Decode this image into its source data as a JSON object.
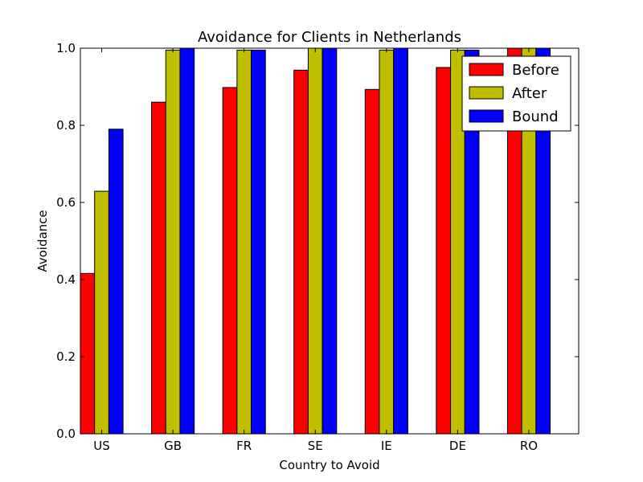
{
  "chart_data": {
    "type": "bar",
    "title": "Avoidance for Clients in Netherlands",
    "xlabel": "Country to Avoid",
    "ylabel": "Avoidance",
    "categories": [
      "US",
      "GB",
      "FR",
      "SE",
      "IE",
      "DE",
      "RO"
    ],
    "ylim": [
      0.0,
      1.0
    ],
    "yticks": [
      "0.0",
      "0.2",
      "0.4",
      "0.6",
      "0.8",
      "1.0"
    ],
    "grid": false,
    "legend_position": "top-right",
    "series": [
      {
        "name": "Before",
        "color": "#ff0000",
        "values": [
          0.416,
          0.86,
          0.898,
          0.943,
          0.893,
          0.95,
          1.0
        ]
      },
      {
        "name": "After",
        "color": "#bfbf00",
        "values": [
          0.629,
          0.995,
          0.995,
          1.0,
          0.995,
          0.995,
          1.0
        ]
      },
      {
        "name": "Bound",
        "color": "#0000ff",
        "values": [
          0.79,
          1.0,
          0.995,
          1.0,
          1.0,
          0.995,
          1.0
        ]
      }
    ]
  }
}
